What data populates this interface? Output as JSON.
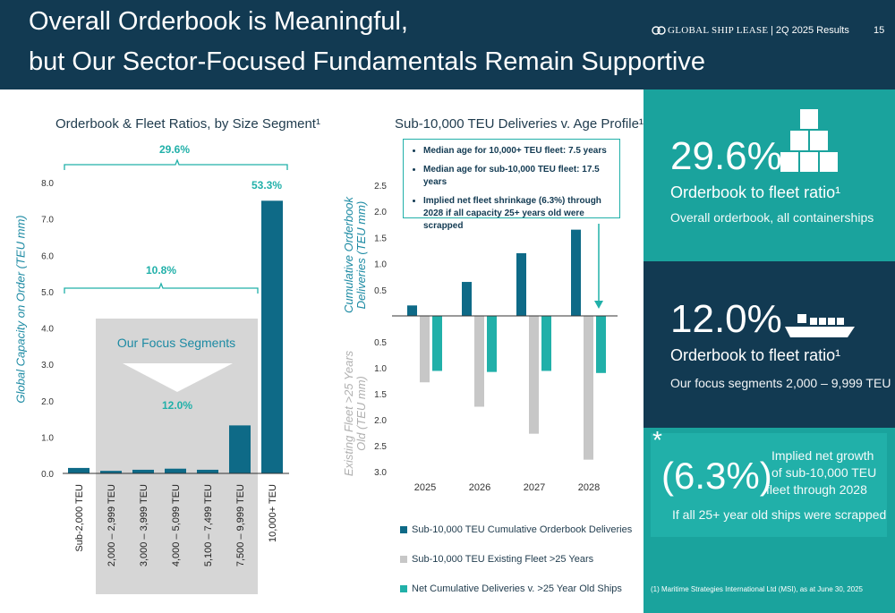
{
  "header": {
    "title_line1": "Overall Orderbook is Meaningful,",
    "title_line2": "but Our Sector-Focused Fundamentals Remain Supportive",
    "brand": "GLOBAL SHIP LEASE",
    "results": "|  2Q 2025 Results",
    "page": "15"
  },
  "colors": {
    "navy": "#123a52",
    "dark_teal_bar": "#0e6a87",
    "teal": "#21b0a9",
    "gray": "#c7c7c7",
    "focus_bg": "#d6d6d6"
  },
  "left_chart": {
    "title": "Orderbook & Fleet Ratios, by Size Segment¹",
    "bracket_top_label": "29.6%",
    "bracket_mid_label": "10.8%",
    "focus_label": "Our Focus Segments",
    "focus_value": "12.0%",
    "top_bar_label": "53.3%"
  },
  "right_chart": {
    "title": "Sub-10,000 TEU Deliveries v. Age Profile¹",
    "callout": [
      "Median age for 10,000+ TEU fleet: 7.5 years",
      "Median age for sub-10,000 TEU fleet: 17.5 years",
      "Implied net fleet shrinkage (6.3%) through 2028 if all capacity 25+ years old were scrapped"
    ],
    "legend": [
      "Sub-10,000 TEU Cumulative Orderbook Deliveries",
      "Sub-10,000 TEU Existing Fleet >25 Years",
      "Net Cumulative Deliveries v. >25 Year Old Ships"
    ]
  },
  "chart_data": [
    {
      "type": "bar",
      "title": "Orderbook & Fleet Ratios, by Size Segment¹",
      "ylabel": "Global Capacity on Order (TEU mm)",
      "xlabel": "",
      "ylim": [
        0,
        8
      ],
      "yticks": [
        "0.0",
        "1.0",
        "2.0",
        "3.0",
        "4.0",
        "5.0",
        "6.0",
        "7.0",
        "8.0"
      ],
      "categories": [
        "Sub-2,000 TEU",
        "2,000 – 2,999 TEU",
        "3,000 – 3,999 TEU",
        "4,000 – 5,099 TEU",
        "5,100 – 7,499 TEU",
        "7,500 – 9,999 TEU",
        "10,000+ TEU"
      ],
      "values": [
        0.15,
        0.07,
        0.1,
        0.13,
        0.1,
        1.32,
        7.5
      ],
      "grid": false
    },
    {
      "type": "bar",
      "title": "Sub-10,000 TEU Deliveries v. Age Profile¹",
      "ylabel_top": "Cumulative Orderbook Deliveries (TEU mm)",
      "ylabel_bottom": "Existing Fleet >25 Years Old (TEU mm)",
      "yticks_top": [
        "0.5",
        "1.0",
        "1.5",
        "2.0",
        "2.5"
      ],
      "yticks_bottom": [
        "0.5",
        "1.0",
        "1.5",
        "2.0",
        "2.5",
        "3.0"
      ],
      "ylim": [
        -3.0,
        2.5
      ],
      "categories": [
        "2025",
        "2026",
        "2027",
        "2028"
      ],
      "series": [
        {
          "name": "Sub-10,000 TEU Cumulative Orderbook Deliveries",
          "values": [
            0.2,
            0.65,
            1.2,
            1.65
          ]
        },
        {
          "name": "Sub-10,000 TEU Existing Fleet >25 Years",
          "values": [
            -1.28,
            -1.75,
            -2.27,
            -2.77
          ]
        },
        {
          "name": "Net Cumulative Deliveries v. >25 Year Old Ships",
          "values": [
            -1.06,
            -1.08,
            -1.06,
            -1.1
          ]
        }
      ],
      "grid": false
    }
  ],
  "panels": {
    "p1": {
      "big": "29.6%",
      "line1": "Orderbook to fleet ratio¹",
      "line2": "Overall orderbook, all containerships"
    },
    "p2": {
      "big": "12.0%",
      "line1": "Orderbook to fleet ratio¹",
      "line2": "Our focus segments 2,000 – 9,999 TEU"
    },
    "p3": {
      "big": "(6.3%)",
      "line1": "Implied net growth",
      "line2": "of sub-10,000 TEU",
      "line3": "fleet through 2028",
      "line4": "If all 25+ year old ships were scrapped",
      "asterisk": "*"
    }
  },
  "footnote": "(1)   Maritime Strategies International Ltd (MSI), as at June 30, 2025"
}
